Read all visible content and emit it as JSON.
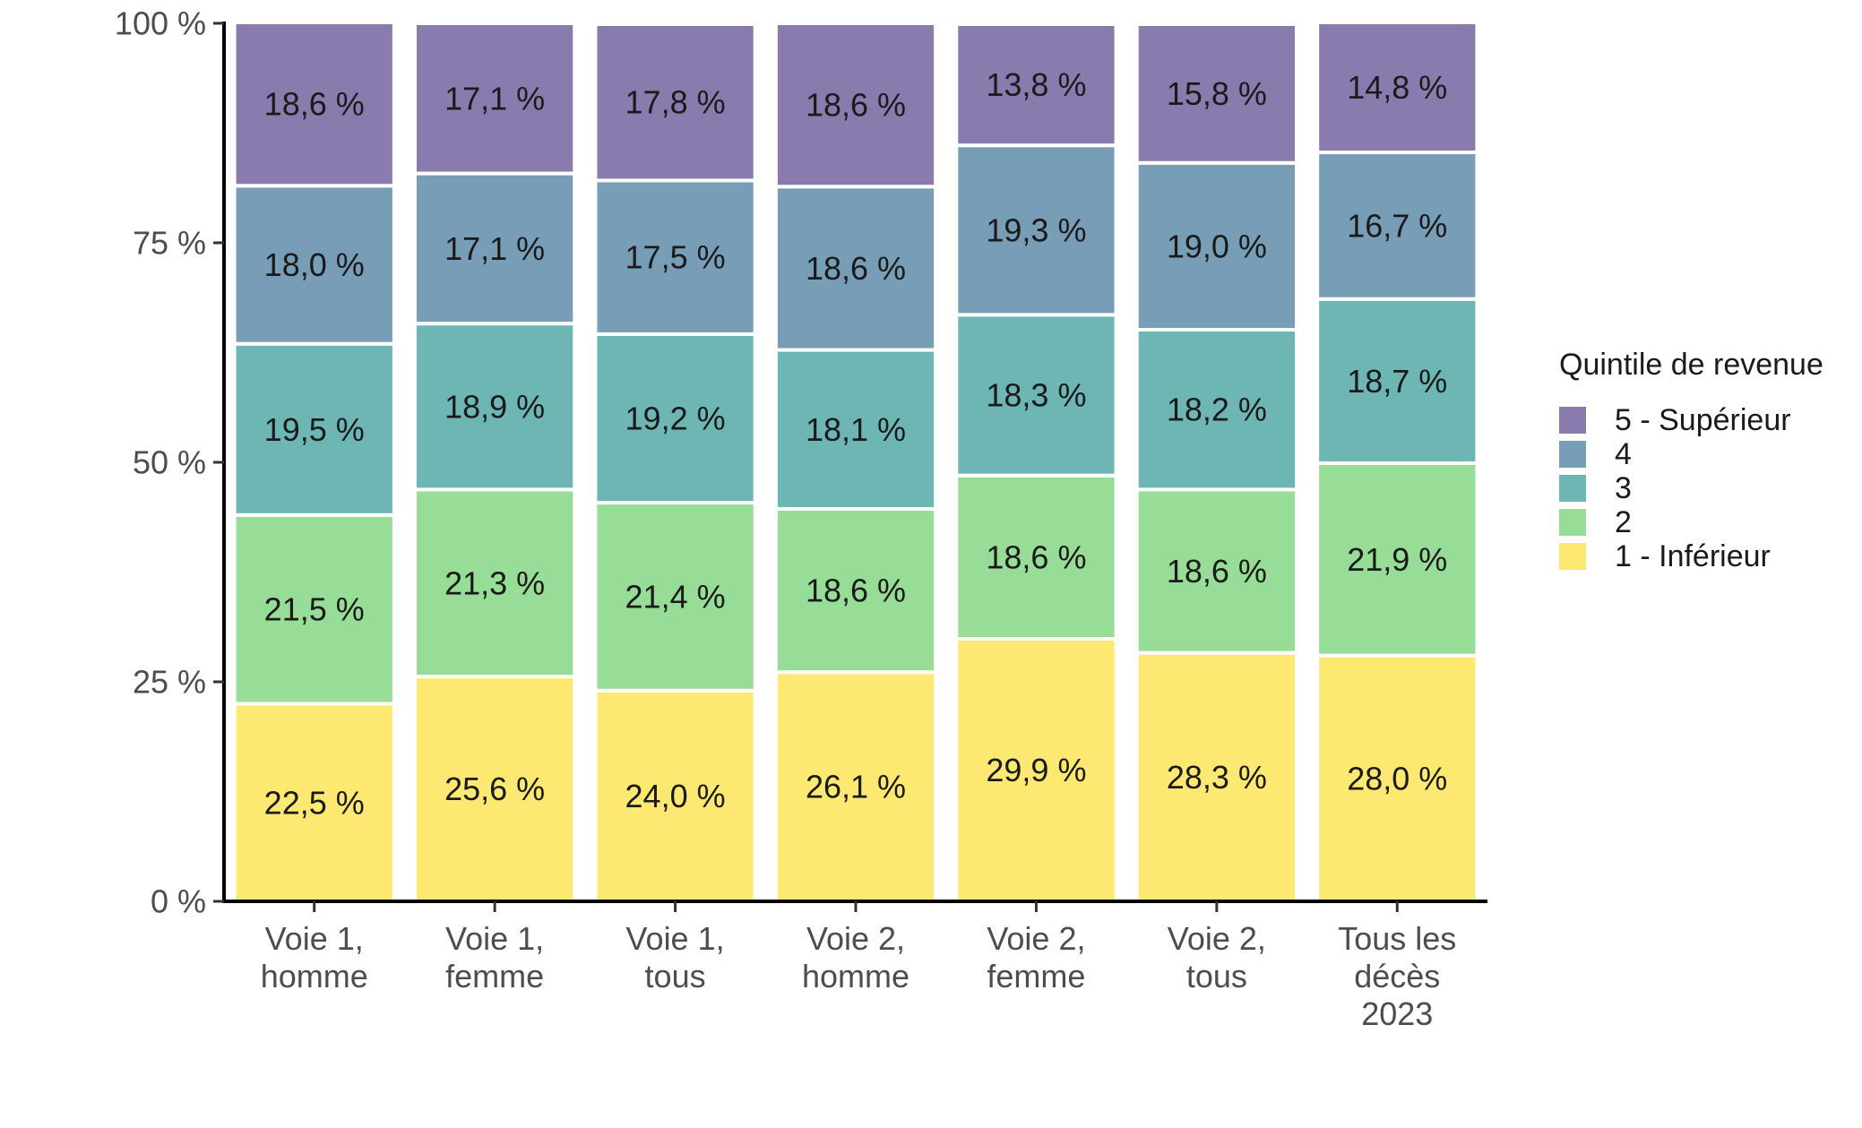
{
  "chart_data": {
    "type": "bar",
    "stacked": true,
    "categories": [
      [
        "Voie 1,",
        "homme"
      ],
      [
        "Voie 1,",
        "femme"
      ],
      [
        "Voie 1,",
        "tous"
      ],
      [
        "Voie 2,",
        "homme"
      ],
      [
        "Voie 2,",
        "femme"
      ],
      [
        "Voie 2,",
        "tous"
      ],
      [
        "Tous les",
        "décès",
        "2023"
      ]
    ],
    "series": [
      {
        "name": "1 - Inférieur",
        "color": "#FDE972",
        "values": [
          22.5,
          25.6,
          24.0,
          26.1,
          29.9,
          28.3,
          28.0
        ],
        "labels": [
          "22,5 %",
          "25,6 %",
          "24,0 %",
          "26,1 %",
          "29,9 %",
          "28,3 %",
          "28,0 %"
        ]
      },
      {
        "name": "2",
        "color": "#97DC97",
        "values": [
          21.5,
          21.3,
          21.4,
          18.6,
          18.6,
          18.6,
          21.9
        ],
        "labels": [
          "21,5 %",
          "21,3 %",
          "21,4 %",
          "18,6 %",
          "18,6 %",
          "18,6 %",
          "21,9 %"
        ]
      },
      {
        "name": "3",
        "color": "#6DB6B4",
        "values": [
          19.5,
          18.9,
          19.2,
          18.1,
          18.3,
          18.2,
          18.7
        ],
        "labels": [
          "19,5 %",
          "18,9 %",
          "19,2 %",
          "18,1 %",
          "18,3 %",
          "18,2 %",
          "18,7 %"
        ]
      },
      {
        "name": "4",
        "color": "#789DB6",
        "values": [
          18.0,
          17.1,
          17.5,
          18.6,
          19.3,
          19.0,
          16.7
        ],
        "labels": [
          "18,0 %",
          "17,1 %",
          "17,5 %",
          "18,6 %",
          "19,3 %",
          "19,0 %",
          "16,7 %"
        ]
      },
      {
        "name": "5 - Supérieur",
        "color": "#8A7BAF",
        "values": [
          18.6,
          17.1,
          17.8,
          18.6,
          13.8,
          15.8,
          14.8
        ],
        "labels": [
          "18,6 %",
          "17,1 %",
          "17,8 %",
          "18,6 %",
          "13,8 %",
          "15,8 %",
          "14,8 %"
        ]
      }
    ],
    "ylim": [
      0,
      100
    ],
    "yticks": [
      0,
      25,
      50,
      75,
      100
    ],
    "ytick_labels": [
      "0 %",
      "25 %",
      "50 %",
      "75 %",
      "100 %"
    ],
    "legend_title": "Quintile de revenue",
    "legend_position": "right",
    "legend_order": [
      "5 - Supérieur",
      "4",
      "3",
      "2",
      "1 - Inférieur"
    ],
    "grid": false,
    "xlabel": "",
    "ylabel": ""
  }
}
